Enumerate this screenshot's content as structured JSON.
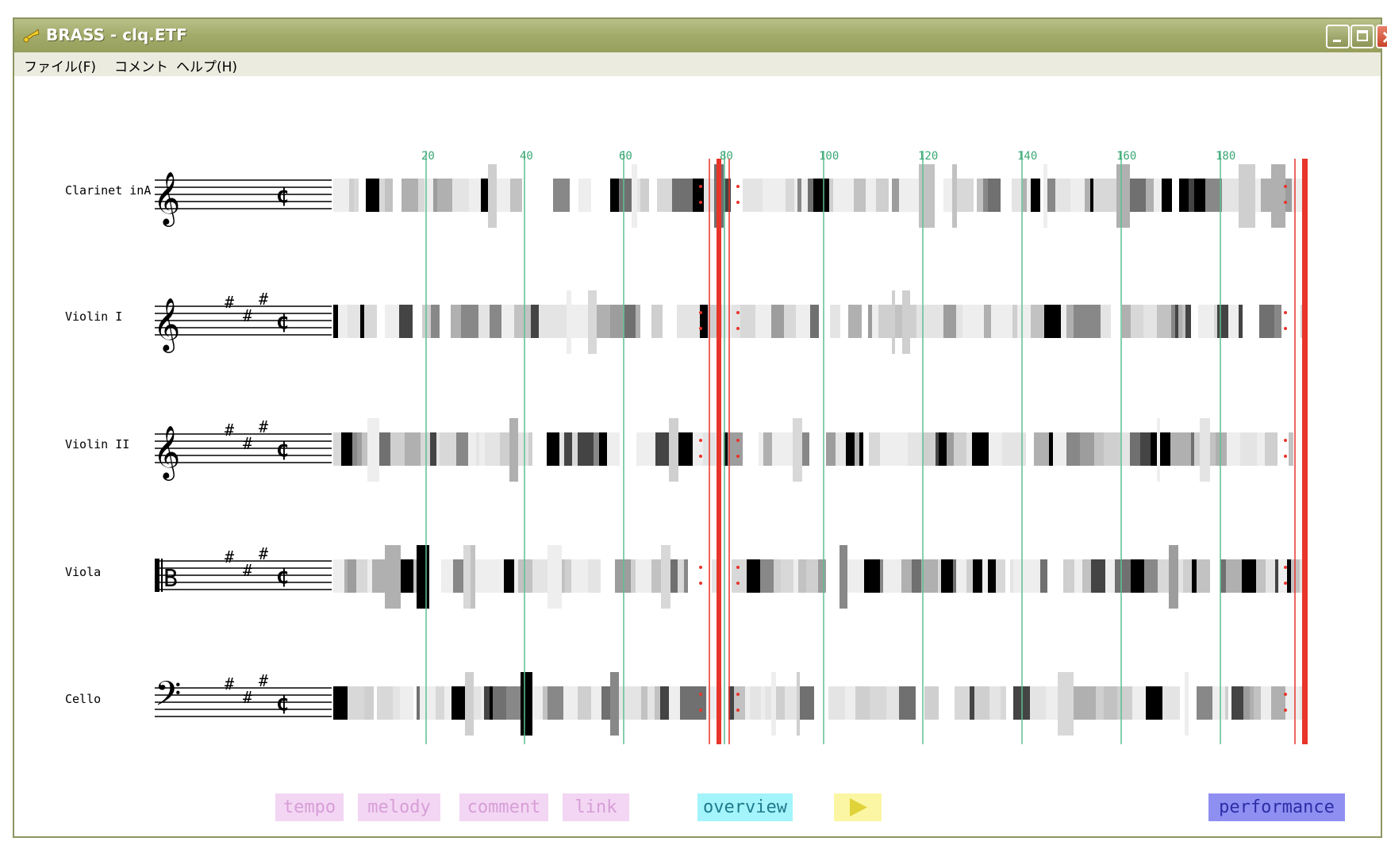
{
  "window": {
    "title": "BRASS - clq.ETF",
    "buttons": [
      "minimize",
      "maximize",
      "close"
    ]
  },
  "menu": [
    {
      "label": "ファイル(F)"
    },
    {
      "label": "コメント"
    },
    {
      "label": "ヘルプ(H)"
    }
  ],
  "ruler": {
    "ticks": [
      "20",
      "40",
      "60",
      "80",
      "100",
      "120",
      "140",
      "160",
      "180"
    ]
  },
  "instruments": [
    {
      "name": "Clarinet inA",
      "clef": "treble",
      "sharps": 0
    },
    {
      "name": "Violin I",
      "clef": "treble",
      "sharps": 3
    },
    {
      "name": "Violin II",
      "clef": "treble",
      "sharps": 3
    },
    {
      "name": "Viola",
      "clef": "alto",
      "sharps": 3
    },
    {
      "name": "Cello",
      "clef": "bass",
      "sharps": 3
    }
  ],
  "time_signature": "cut-time",
  "buttons": {
    "tempo": "tempo",
    "melody": "melody",
    "comment": "comment",
    "link": "link",
    "overview": "overview",
    "play": "play-icon",
    "performance": "performance"
  },
  "colors": {
    "ruler_line": "#5cbf93",
    "ruler_text": "#3aa774",
    "marker": "#e8342a",
    "tempo_bg": "#f3d6f3",
    "tempo_fg": "#d79ed7",
    "overview_bg": "#a3f4fb",
    "overview_fg": "#1f7a8a",
    "play_bg": "#fbf6a3",
    "play_fg": "#e0d33a",
    "performance_bg": "#8f8ff2",
    "performance_fg": "#2d2da8"
  }
}
